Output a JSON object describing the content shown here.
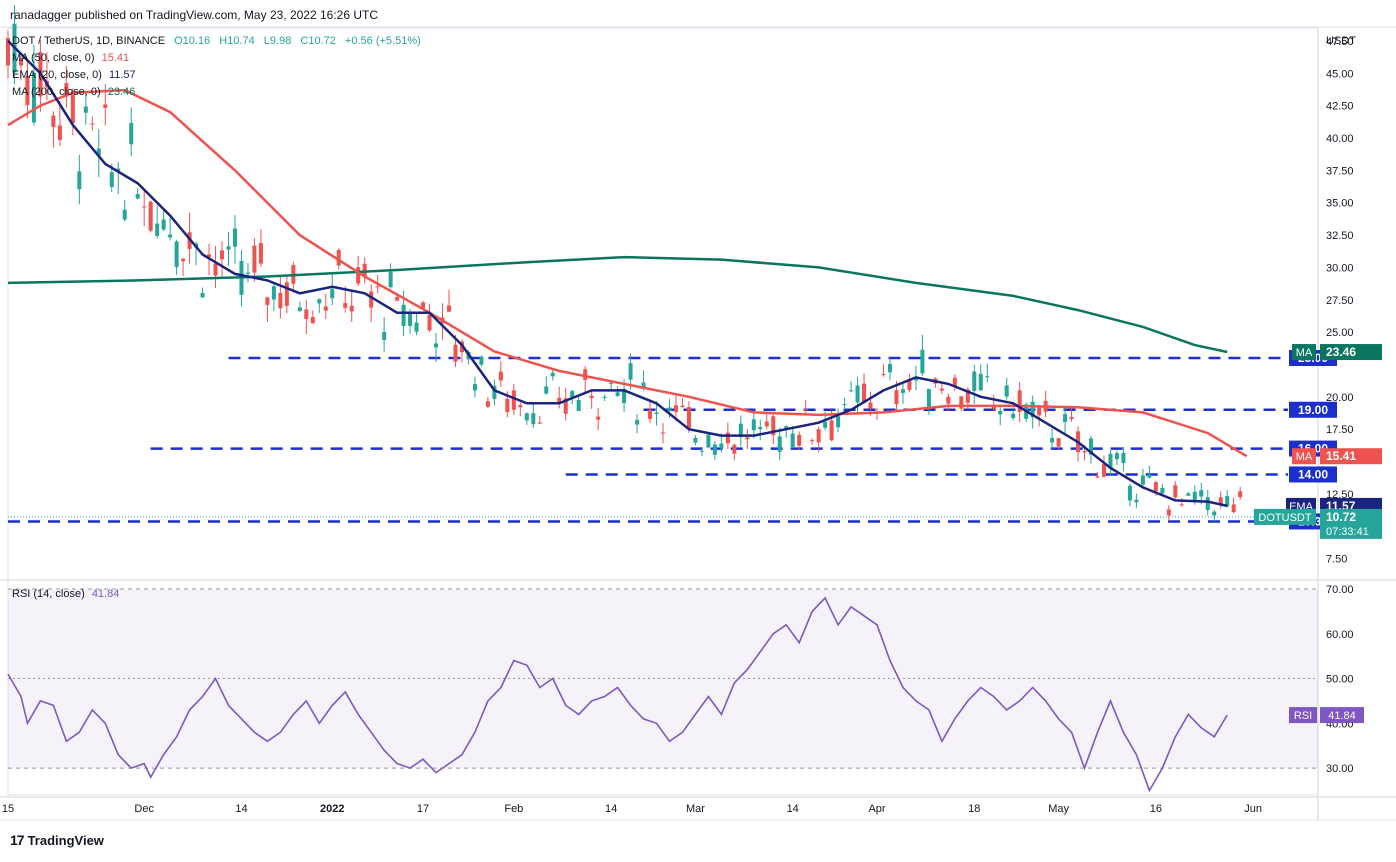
{
  "publisher": "ranadagger published on TradingView.com, May 23, 2022 16:26 UTC",
  "branding": "TradingView",
  "colors": {
    "up": "#26a69a",
    "down": "#ef5350",
    "ema": "#1a237e",
    "ma50": "#ef5350",
    "ma200": "#0a7660",
    "rsi": "#7e57c2",
    "level": "#1c2fcc"
  },
  "chart_data": [
    {
      "type": "candlestick",
      "title": "DOT / TetherUS, 1D, BINANCE",
      "ohlc_label": {
        "o": "O10.16",
        "h": "H10.74",
        "l": "L9.98",
        "c": "C10.72",
        "chg": "+0.56 (+5.51%)"
      },
      "indicators": [
        {
          "name": "MA (50, close, 0)",
          "value": "15.41"
        },
        {
          "name": "EMA (20, close, 0)",
          "value": "11.57"
        },
        {
          "name": "MA (200, close, 0)",
          "value": "23.46"
        }
      ],
      "y_unit": "USDT",
      "y_ticks": [
        "47.50",
        "45.00",
        "42.50",
        "40.00",
        "37.50",
        "35.00",
        "32.50",
        "30.00",
        "27.50",
        "25.00",
        "20.00",
        "17.50",
        "12.50",
        "7.50"
      ],
      "ylim": [
        6.0,
        48.5
      ],
      "x_ticks": [
        "15",
        "Dec",
        "14",
        "2022",
        "17",
        "Feb",
        "14",
        "Mar",
        "14",
        "Apr",
        "18",
        "May",
        "16",
        "Jun"
      ],
      "x_tick_index": [
        0,
        21,
        36,
        50,
        64,
        78,
        93,
        106,
        121,
        134,
        149,
        162,
        177,
        192
      ],
      "x_range": [
        0,
        202
      ],
      "support_resistance": [
        {
          "label": "23.00",
          "value": 23.0,
          "from": 34
        },
        {
          "label": "19.00",
          "value": 19.0,
          "from": 98
        },
        {
          "label": "16.00",
          "value": 16.0,
          "from": 22
        },
        {
          "label": "14.00",
          "value": 14.0,
          "from": 86
        },
        {
          "label": "10.37",
          "value": 10.37,
          "from": 0
        }
      ],
      "price_badges": [
        {
          "tag": "MA",
          "value": "23.46",
          "y": 23.46,
          "color": "#0a7660"
        },
        {
          "tag": "MA",
          "value": "15.41",
          "y": 15.41,
          "color": "#ef5350"
        },
        {
          "tag": "EMA",
          "value": "11.57",
          "y": 11.57,
          "color": "#1a237e"
        },
        {
          "tag": "DOTUSDT",
          "value": "10.72",
          "y": 10.72,
          "color": "#26a69a",
          "countdown": "07:33:41"
        }
      ],
      "series": [
        {
          "name": "MA 200",
          "color": "#0a7660",
          "points": [
            [
              0,
              28.8
            ],
            [
              20,
              29.0
            ],
            [
              40,
              29.3
            ],
            [
              60,
              29.8
            ],
            [
              80,
              30.4
            ],
            [
              95,
              30.8
            ],
            [
              110,
              30.6
            ],
            [
              125,
              30.0
            ],
            [
              140,
              28.8
            ],
            [
              155,
              27.8
            ],
            [
              165,
              26.7
            ],
            [
              175,
              25.4
            ],
            [
              183,
              24.0
            ],
            [
              188,
              23.46
            ]
          ]
        },
        {
          "name": "MA 50",
          "color": "#ef5350",
          "points": [
            [
              0,
              41.0
            ],
            [
              5,
              42.5
            ],
            [
              10,
              43.5
            ],
            [
              18,
              43.7
            ],
            [
              25,
              42.0
            ],
            [
              35,
              37.5
            ],
            [
              45,
              32.5
            ],
            [
              55,
              29.3
            ],
            [
              65,
              26.5
            ],
            [
              75,
              23.5
            ],
            [
              85,
              22.0
            ],
            [
              95,
              21.0
            ],
            [
              105,
              20.0
            ],
            [
              115,
              18.8
            ],
            [
              125,
              18.6
            ],
            [
              135,
              18.8
            ],
            [
              145,
              19.3
            ],
            [
              155,
              19.3
            ],
            [
              165,
              19.2
            ],
            [
              175,
              18.8
            ],
            [
              185,
              17.2
            ],
            [
              191,
              15.41
            ]
          ]
        },
        {
          "name": "EMA 20",
          "color": "#1a237e",
          "points": [
            [
              0,
              47.5
            ],
            [
              5,
              45.0
            ],
            [
              10,
              41.0
            ],
            [
              15,
              38.0
            ],
            [
              20,
              36.5
            ],
            [
              25,
              34.0
            ],
            [
              30,
              31.0
            ],
            [
              35,
              29.5
            ],
            [
              40,
              29.0
            ],
            [
              45,
              28.0
            ],
            [
              50,
              28.5
            ],
            [
              55,
              28.0
            ],
            [
              60,
              26.5
            ],
            [
              65,
              26.5
            ],
            [
              70,
              24.0
            ],
            [
              75,
              20.5
            ],
            [
              80,
              19.5
            ],
            [
              85,
              19.5
            ],
            [
              90,
              20.5
            ],
            [
              95,
              20.5
            ],
            [
              100,
              19.5
            ],
            [
              105,
              17.5
            ],
            [
              110,
              17.0
            ],
            [
              115,
              17.0
            ],
            [
              120,
              17.5
            ],
            [
              125,
              18.0
            ],
            [
              130,
              19.0
            ],
            [
              135,
              20.5
            ],
            [
              140,
              21.5
            ],
            [
              145,
              21.0
            ],
            [
              150,
              20.0
            ],
            [
              155,
              19.5
            ],
            [
              160,
              18.0
            ],
            [
              165,
              16.5
            ],
            [
              170,
              14.5
            ],
            [
              175,
              13.0
            ],
            [
              180,
              12.0
            ],
            [
              185,
              11.9
            ],
            [
              188,
              11.57
            ]
          ]
        },
        {
          "name": "RSI (14, close)",
          "color": "#7e57c2",
          "value": "41.84",
          "levels": [
            70,
            50,
            30
          ],
          "ylim": [
            24,
            72
          ],
          "y_ticks": [
            "70.00",
            "60.00",
            "50.00",
            "40.00",
            "30.00"
          ],
          "points": [
            [
              0,
              51
            ],
            [
              2,
              46
            ],
            [
              3,
              40
            ],
            [
              5,
              45
            ],
            [
              7,
              44
            ],
            [
              9,
              36
            ],
            [
              11,
              38
            ],
            [
              13,
              43
            ],
            [
              15,
              40
            ],
            [
              17,
              33
            ],
            [
              19,
              30
            ],
            [
              21,
              31
            ],
            [
              22,
              28
            ],
            [
              24,
              33
            ],
            [
              26,
              37
            ],
            [
              28,
              43
            ],
            [
              30,
              46
            ],
            [
              32,
              50
            ],
            [
              34,
              44
            ],
            [
              36,
              41
            ],
            [
              38,
              38
            ],
            [
              40,
              36
            ],
            [
              42,
              38
            ],
            [
              44,
              42
            ],
            [
              46,
              45
            ],
            [
              48,
              40
            ],
            [
              50,
              44
            ],
            [
              52,
              47
            ],
            [
              54,
              42
            ],
            [
              56,
              38
            ],
            [
              58,
              34
            ],
            [
              60,
              31
            ],
            [
              62,
              30
            ],
            [
              64,
              32
            ],
            [
              66,
              29
            ],
            [
              68,
              31
            ],
            [
              70,
              33
            ],
            [
              72,
              38
            ],
            [
              74,
              45
            ],
            [
              76,
              48
            ],
            [
              78,
              54
            ],
            [
              80,
              53
            ],
            [
              82,
              48
            ],
            [
              84,
              50
            ],
            [
              86,
              44
            ],
            [
              88,
              42
            ],
            [
              90,
              45
            ],
            [
              92,
              46
            ],
            [
              94,
              48
            ],
            [
              96,
              44
            ],
            [
              98,
              41
            ],
            [
              100,
              40
            ],
            [
              102,
              36
            ],
            [
              104,
              38
            ],
            [
              106,
              42
            ],
            [
              108,
              46
            ],
            [
              110,
              42
            ],
            [
              112,
              49
            ],
            [
              114,
              52
            ],
            [
              116,
              56
            ],
            [
              118,
              60
            ],
            [
              120,
              62
            ],
            [
              122,
              58
            ],
            [
              124,
              65
            ],
            [
              126,
              68
            ],
            [
              128,
              62
            ],
            [
              130,
              66
            ],
            [
              132,
              64
            ],
            [
              134,
              62
            ],
            [
              136,
              54
            ],
            [
              138,
              48
            ],
            [
              140,
              45
            ],
            [
              142,
              43
            ],
            [
              144,
              36
            ],
            [
              146,
              41
            ],
            [
              148,
              45
            ],
            [
              150,
              48
            ],
            [
              152,
              46
            ],
            [
              154,
              43
            ],
            [
              156,
              45
            ],
            [
              158,
              48
            ],
            [
              160,
              45
            ],
            [
              162,
              41
            ],
            [
              164,
              38
            ],
            [
              166,
              30
            ],
            [
              168,
              38
            ],
            [
              170,
              45
            ],
            [
              172,
              38
            ],
            [
              174,
              33
            ],
            [
              176,
              25
            ],
            [
              178,
              30
            ],
            [
              180,
              37
            ],
            [
              182,
              42
            ],
            [
              184,
              39
            ],
            [
              186,
              37
            ],
            [
              188,
              41.84
            ]
          ]
        }
      ]
    }
  ]
}
